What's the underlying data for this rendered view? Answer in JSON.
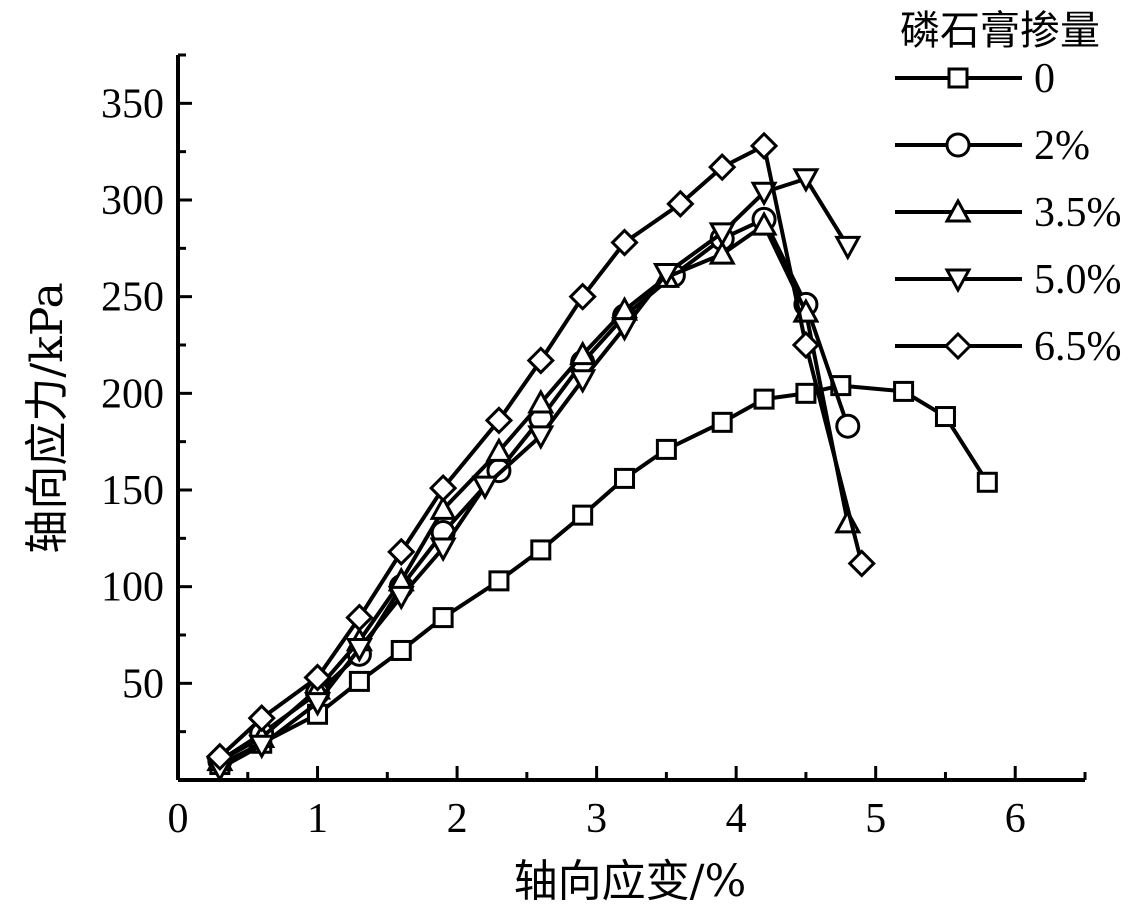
{
  "chart_data": {
    "type": "line",
    "xlabel": "轴向应变/%",
    "ylabel": "轴向应力/kPa",
    "xlim": [
      0,
      6.5
    ],
    "ylim": [
      0,
      375
    ],
    "xticks": [
      0,
      1,
      2,
      3,
      4,
      5,
      6
    ],
    "yticks": [
      50,
      100,
      150,
      200,
      250,
      300,
      350
    ],
    "grid": false,
    "legend": {
      "title": "磷石膏掺量",
      "position": "top-right"
    },
    "series": [
      {
        "name": "0",
        "marker": "square",
        "x": [
          0.3,
          0.6,
          1.0,
          1.3,
          1.6,
          1.9,
          2.3,
          2.6,
          2.9,
          3.2,
          3.5,
          3.9,
          4.2,
          4.5,
          4.75,
          5.2,
          5.5,
          5.8
        ],
        "y": [
          8,
          19,
          34,
          51,
          67,
          84,
          103,
          119,
          137,
          156,
          171,
          185,
          197,
          200,
          204,
          201,
          188,
          154
        ]
      },
      {
        "name": "2%",
        "marker": "circle",
        "x": [
          0.3,
          0.6,
          1.0,
          1.3,
          1.6,
          1.9,
          2.3,
          2.6,
          2.9,
          3.2,
          3.55,
          3.9,
          4.2,
          4.5,
          4.8
        ],
        "y": [
          10,
          24,
          45,
          65,
          100,
          128,
          160,
          187,
          216,
          240,
          261,
          280,
          290,
          246,
          183
        ]
      },
      {
        "name": "3.5%",
        "marker": "triangle-up",
        "x": [
          0.3,
          0.6,
          1.0,
          1.3,
          1.6,
          1.9,
          2.3,
          2.6,
          2.9,
          3.2,
          3.5,
          3.9,
          4.2,
          4.5,
          4.8
        ],
        "y": [
          10,
          22,
          47,
          72,
          103,
          140,
          170,
          195,
          220,
          243,
          260,
          272,
          287,
          242,
          133
        ]
      },
      {
        "name": "5.0%",
        "marker": "triangle-down",
        "x": [
          0.3,
          0.6,
          1.0,
          1.3,
          1.6,
          1.9,
          2.2,
          2.6,
          2.9,
          3.2,
          3.5,
          3.9,
          4.2,
          4.5,
          4.8
        ],
        "y": [
          6,
          18,
          40,
          68,
          95,
          120,
          152,
          178,
          207,
          234,
          262,
          283,
          304,
          311,
          276
        ]
      },
      {
        "name": "6.5%",
        "marker": "diamond",
        "x": [
          0.3,
          0.6,
          1.0,
          1.3,
          1.6,
          1.9,
          2.3,
          2.6,
          2.9,
          3.2,
          3.6,
          3.9,
          4.2,
          4.5,
          4.9
        ],
        "y": [
          12,
          32,
          53,
          84,
          118,
          151,
          186,
          217,
          250,
          278,
          298,
          317,
          328,
          225,
          112
        ]
      }
    ]
  }
}
